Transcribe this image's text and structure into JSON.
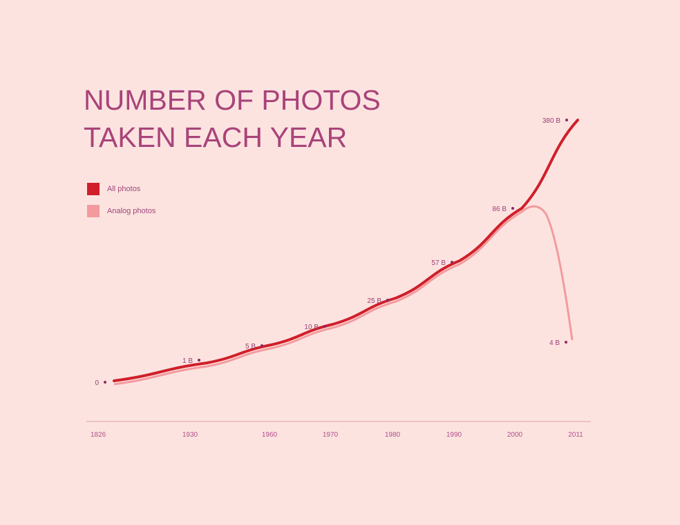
{
  "chart_data": {
    "type": "line",
    "title": [
      "NUMBER OF PHOTOS",
      "TAKEN EACH YEAR"
    ],
    "x_ticks": [
      "1826",
      "1930",
      "1960",
      "1970",
      "1980",
      "1990",
      "2000",
      "2011"
    ],
    "legend": [
      {
        "name": "All photos",
        "color": "#d01f2a"
      },
      {
        "name": "Analog photos",
        "color": "#f39a9e"
      }
    ],
    "legend_placement": "top-left",
    "grid": false,
    "points": [
      {
        "year": 1826,
        "value": 0,
        "label": "0"
      },
      {
        "year": 1930,
        "value": 1,
        "label": "1 B"
      },
      {
        "year": 1960,
        "value": 5,
        "label": "5 B"
      },
      {
        "year": 1970,
        "value": 10,
        "label": "10 B"
      },
      {
        "year": 1980,
        "value": 25,
        "label": "25 B"
      },
      {
        "year": 1990,
        "value": 57,
        "label": "57 B"
      },
      {
        "year": 2000,
        "value": 86,
        "label": "86 B"
      },
      {
        "year": 2011,
        "value": 380,
        "label": "380 B"
      }
    ],
    "analog_end": {
      "year": 2011,
      "value": 4,
      "label": "4 B"
    },
    "unit": "B"
  }
}
